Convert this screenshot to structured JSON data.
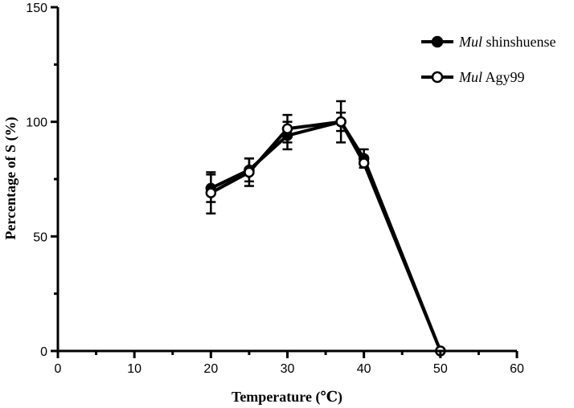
{
  "chart_data": {
    "type": "line",
    "xlabel": "Temperature (℃)",
    "ylabel": "Percentage of S (%)",
    "xlim": [
      0,
      60
    ],
    "ylim": [
      0,
      150
    ],
    "x_ticks": [
      0,
      10,
      20,
      30,
      40,
      50,
      60
    ],
    "y_ticks": [
      0,
      50,
      100,
      150
    ],
    "x_tick_labels": [
      "0",
      "10",
      "20",
      "30",
      "40",
      "50",
      "60"
    ],
    "y_tick_labels": [
      "0",
      "50",
      "100",
      "150"
    ],
    "grid": false,
    "legend_position": "top-right",
    "series": [
      {
        "name_italic": "Mul",
        "name_rest": " shinshuense",
        "marker": "filled-circle",
        "color": "#000000",
        "x": [
          20,
          25,
          30,
          37,
          40,
          50
        ],
        "y": [
          71,
          79,
          94,
          100,
          84,
          0
        ],
        "err": [
          6,
          5,
          6,
          4,
          4,
          0
        ]
      },
      {
        "name_italic": "Mul",
        "name_rest": " Agy99",
        "marker": "open-circle",
        "color": "#000000",
        "x": [
          20,
          25,
          30,
          37,
          40,
          50
        ],
        "y": [
          69,
          78,
          97,
          100,
          82,
          0
        ],
        "err": [
          9,
          6,
          6,
          9,
          2,
          0
        ]
      }
    ]
  }
}
